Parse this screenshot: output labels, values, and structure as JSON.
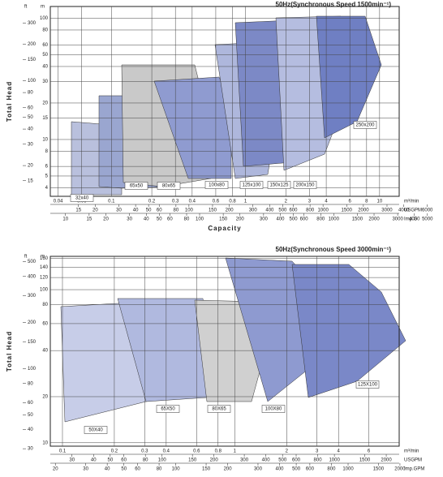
{
  "panels": [
    {
      "title": "50Hz(Synchronous Speed 1500min⁻¹)",
      "y_label": "Total Head",
      "x_label": "Capacity",
      "ft_unit": "ft",
      "m_unit": "m",
      "x_unit": "m³/min",
      "usgpm_unit": "USGPM",
      "impg_unit": "Imp.G",
      "xlim": [
        0.035,
        14
      ],
      "ylim": [
        3.4,
        125
      ],
      "m_ticks": [
        4,
        5,
        6,
        8,
        10,
        15,
        20,
        30,
        40,
        50,
        60,
        80,
        100
      ],
      "ft_ticks": [
        15,
        20,
        30,
        40,
        50,
        60,
        80,
        100,
        150,
        200,
        300
      ],
      "x_ticks": [
        0.04,
        0.06,
        0.1,
        0.2,
        0.3,
        0.4,
        0.6,
        0.8,
        1,
        2,
        3,
        4,
        6,
        8,
        10
      ],
      "usgpm_ticks": [
        15,
        20,
        30,
        40,
        50,
        60,
        80,
        100,
        150,
        200,
        300,
        400,
        500,
        600,
        800,
        1000,
        1500,
        2000,
        3000,
        4000,
        6000
      ],
      "impg_ticks": [
        10,
        15,
        20,
        30,
        40,
        50,
        60,
        80,
        100,
        150,
        200,
        300,
        400,
        500,
        600,
        800,
        1000,
        1500,
        2000,
        3000,
        4000,
        5000
      ],
      "sizes": [
        "32x40",
        "65x50",
        "80x65",
        "100x80",
        "125x100",
        "150x125",
        "200x150",
        "250x200"
      ]
    },
    {
      "title": "50Hz(Synchronous Speed 3000min⁻¹)",
      "y_label": "Total Head",
      "x_label": "",
      "ft_unit": "ft",
      "m_unit": "m",
      "x_unit": "m³/min",
      "usgpm_unit": "USGPM",
      "impg_unit": "Imp.GPM",
      "xlim": [
        0.085,
        9
      ],
      "ylim": [
        9.5,
        165
      ],
      "m_ticks": [
        10,
        20,
        40,
        60,
        80,
        100,
        120,
        140,
        160
      ],
      "ft_ticks": [
        30,
        40,
        50,
        60,
        80,
        100,
        150,
        200,
        300,
        400,
        500
      ],
      "x_ticks": [
        0.1,
        0.2,
        0.3,
        0.4,
        0.6,
        0.8,
        1,
        2,
        3,
        4,
        6
      ],
      "usgpm_ticks": [
        30,
        40,
        50,
        60,
        80,
        100,
        150,
        200,
        300,
        400,
        500,
        600,
        800,
        1000,
        1500,
        2000
      ],
      "impg_ticks": [
        20,
        30,
        40,
        50,
        60,
        80,
        100,
        150,
        200,
        300,
        400,
        500,
        600,
        800,
        1000,
        1500,
        2000
      ],
      "sizes": [
        "50X40",
        "65X50",
        "80X65",
        "100X80",
        "125X100"
      ]
    }
  ]
}
